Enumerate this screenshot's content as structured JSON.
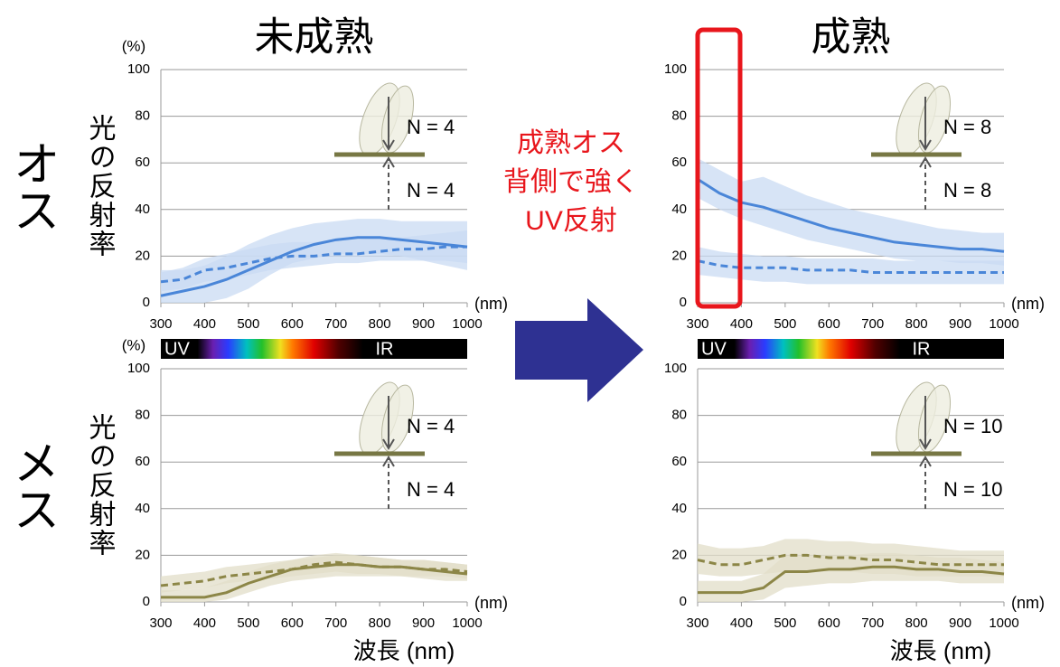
{
  "chart_data": [
    {
      "type": "line",
      "title": "未成熟",
      "row_label": "オス",
      "ylabel": "光の反射率",
      "y_unit": "(%)",
      "x_unit": "(nm)",
      "spectrum_labels": [
        "UV",
        "IR"
      ],
      "annotations": [
        "N = 4",
        "N = 4"
      ],
      "x": [
        300,
        350,
        400,
        450,
        500,
        550,
        600,
        650,
        700,
        750,
        800,
        850,
        900,
        950,
        1000
      ],
      "xlim": [
        300,
        1000
      ],
      "ylim": [
        0,
        100
      ],
      "xticks": [
        300,
        400,
        500,
        600,
        700,
        800,
        900,
        1000
      ],
      "yticks": [
        0,
        20,
        40,
        60,
        80,
        100
      ],
      "grid": true,
      "series": [
        {
          "color": "#4a86d8",
          "band_color": "#c9dbf3",
          "dashed": false,
          "values": [
            3,
            5,
            7,
            10,
            14,
            18,
            22,
            25,
            27,
            28,
            28,
            27,
            26,
            25,
            24
          ],
          "lower": [
            0,
            0,
            0,
            2,
            6,
            12,
            17,
            19,
            21,
            21,
            21,
            20,
            18,
            16,
            14
          ],
          "upper": [
            14,
            14,
            16,
            20,
            25,
            29,
            32,
            34,
            35,
            36,
            36,
            35,
            35,
            35,
            35
          ]
        },
        {
          "color": "#4a86d8",
          "band_color": "#c9dbf3",
          "dashed": true,
          "values": [
            9,
            10,
            14,
            15,
            17,
            19,
            20,
            20,
            21,
            21,
            22,
            23,
            23,
            24,
            24
          ],
          "lower": [
            5,
            6,
            9,
            10,
            12,
            14,
            15,
            16,
            17,
            17,
            18,
            18,
            18,
            18,
            17
          ],
          "upper": [
            13,
            15,
            19,
            21,
            23,
            25,
            26,
            26,
            27,
            27,
            28,
            28,
            29,
            30,
            31
          ]
        }
      ]
    },
    {
      "type": "line",
      "title": "成熟",
      "x_unit": "(nm)",
      "spectrum_labels": [
        "UV",
        "IR"
      ],
      "annotations": [
        "N = 8",
        "N = 8"
      ],
      "x": [
        300,
        350,
        400,
        450,
        500,
        550,
        600,
        650,
        700,
        750,
        800,
        850,
        900,
        950,
        1000
      ],
      "xlim": [
        300,
        1000
      ],
      "ylim": [
        0,
        100
      ],
      "xticks": [
        300,
        400,
        500,
        600,
        700,
        800,
        900,
        1000
      ],
      "yticks": [
        0,
        20,
        40,
        60,
        80,
        100
      ],
      "grid": true,
      "series": [
        {
          "color": "#4a86d8",
          "band_color": "#c9dbf3",
          "dashed": false,
          "values": [
            53,
            47,
            43,
            41,
            38,
            35,
            32,
            30,
            28,
            26,
            25,
            24,
            23,
            23,
            22
          ],
          "lower": [
            45,
            40,
            36,
            33,
            30,
            27,
            25,
            23,
            21,
            19,
            18,
            18,
            17,
            17,
            16
          ],
          "upper": [
            62,
            57,
            52,
            54,
            50,
            46,
            43,
            40,
            38,
            36,
            34,
            32,
            31,
            30,
            30
          ]
        },
        {
          "color": "#4a86d8",
          "band_color": "#c9dbf3",
          "dashed": true,
          "values": [
            18,
            16,
            15,
            15,
            15,
            14,
            14,
            14,
            13,
            13,
            13,
            13,
            13,
            13,
            13
          ],
          "lower": [
            12,
            11,
            10,
            9,
            9,
            8,
            8,
            8,
            8,
            8,
            8,
            8,
            8,
            8,
            8
          ],
          "upper": [
            24,
            22,
            21,
            20,
            20,
            19,
            19,
            19,
            19,
            18,
            18,
            18,
            18,
            18,
            18
          ]
        }
      ]
    },
    {
      "type": "line",
      "row_label": "メス",
      "ylabel": "光の反射率",
      "y_unit": "(%)",
      "x_unit": "(nm)",
      "xlabel": "波長 (nm)",
      "annotations": [
        "N = 4",
        "N = 4"
      ],
      "x": [
        300,
        350,
        400,
        450,
        500,
        550,
        600,
        650,
        700,
        750,
        800,
        850,
        900,
        950,
        1000
      ],
      "xlim": [
        300,
        1000
      ],
      "ylim": [
        0,
        100
      ],
      "xticks": [
        300,
        400,
        500,
        600,
        700,
        800,
        900,
        1000
      ],
      "yticks": [
        0,
        20,
        40,
        60,
        80,
        100
      ],
      "grid": true,
      "series": [
        {
          "color": "#8c8647",
          "band_color": "#e2ddc8",
          "dashed": false,
          "values": [
            2,
            2,
            2,
            4,
            8,
            11,
            14,
            15,
            16,
            16,
            15,
            15,
            14,
            13,
            12
          ],
          "lower": [
            0,
            0,
            0,
            1,
            4,
            7,
            9,
            10,
            11,
            11,
            11,
            11,
            10,
            9,
            9
          ],
          "upper": [
            5,
            5,
            6,
            9,
            13,
            16,
            18,
            19,
            20,
            20,
            19,
            18,
            18,
            17,
            16
          ]
        },
        {
          "color": "#8c8647",
          "band_color": "#e2ddc8",
          "dashed": true,
          "values": [
            7,
            8,
            9,
            11,
            12,
            13,
            14,
            16,
            17,
            16,
            15,
            15,
            14,
            14,
            13
          ],
          "lower": [
            4,
            5,
            6,
            8,
            9,
            10,
            11,
            12,
            13,
            12,
            12,
            11,
            11,
            11,
            10
          ],
          "upper": [
            11,
            12,
            13,
            15,
            16,
            17,
            18,
            20,
            21,
            20,
            19,
            18,
            18,
            17,
            16
          ]
        }
      ]
    },
    {
      "type": "line",
      "x_unit": "(nm)",
      "xlabel": "波長 (nm)",
      "annotations": [
        "N = 10",
        "N = 10"
      ],
      "x": [
        300,
        350,
        400,
        450,
        500,
        550,
        600,
        650,
        700,
        750,
        800,
        850,
        900,
        950,
        1000
      ],
      "xlim": [
        300,
        1000
      ],
      "ylim": [
        0,
        100
      ],
      "xticks": [
        300,
        400,
        500,
        600,
        700,
        800,
        900,
        1000
      ],
      "yticks": [
        0,
        20,
        40,
        60,
        80,
        100
      ],
      "grid": true,
      "series": [
        {
          "color": "#8c8647",
          "band_color": "#e2ddc8",
          "dashed": false,
          "values": [
            4,
            4,
            4,
            6,
            13,
            13,
            14,
            14,
            15,
            15,
            14,
            14,
            13,
            13,
            12
          ],
          "lower": [
            0,
            0,
            0,
            1,
            6,
            7,
            8,
            8,
            9,
            9,
            9,
            9,
            8,
            8,
            8
          ],
          "upper": [
            9,
            9,
            9,
            12,
            20,
            20,
            20,
            20,
            21,
            21,
            20,
            19,
            19,
            18,
            17
          ]
        },
        {
          "color": "#8c8647",
          "band_color": "#e2ddc8",
          "dashed": true,
          "values": [
            18,
            16,
            16,
            18,
            20,
            20,
            19,
            19,
            18,
            18,
            17,
            16,
            16,
            16,
            16
          ],
          "lower": [
            12,
            11,
            11,
            12,
            13,
            13,
            13,
            13,
            12,
            12,
            11,
            11,
            11,
            11,
            11
          ],
          "upper": [
            25,
            23,
            23,
            24,
            27,
            27,
            26,
            26,
            25,
            25,
            24,
            23,
            22,
            22,
            22
          ]
        }
      ]
    }
  ],
  "callout": [
    "成熟オス",
    "背側で強く",
    "UV反射"
  ]
}
